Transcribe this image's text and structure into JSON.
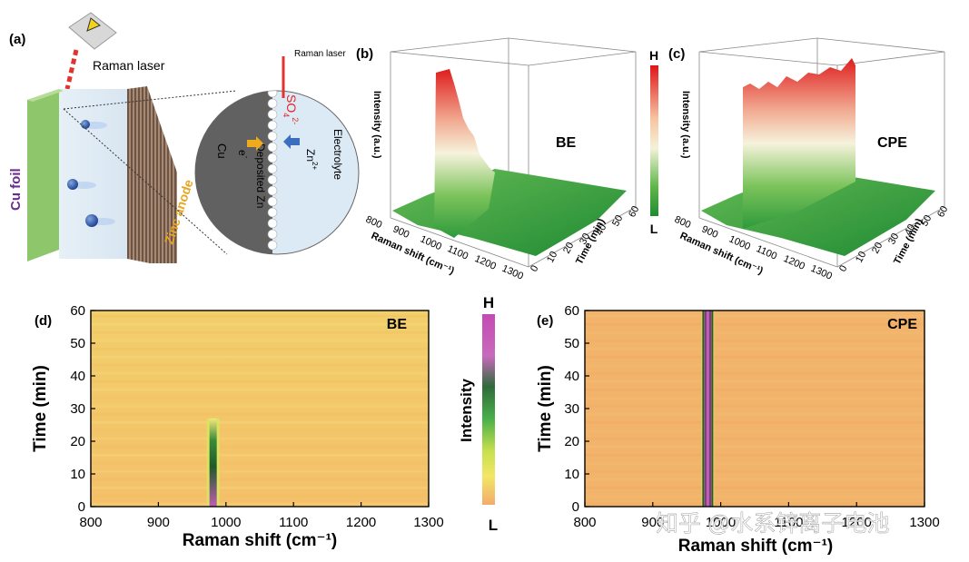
{
  "panels": {
    "a": {
      "label": "(a)",
      "laser_label": "Raman laser",
      "zoom_laser_label": "Raman laser",
      "cu_foil": "Cu foil",
      "zinc_anode": "Zinc anode",
      "cu": "Cu",
      "deposited_zn": "Deposited Zn",
      "electrolyte": "Electrolyte",
      "sulfate_base": "SO",
      "sulfate_sub": "4",
      "sulfate_sup": "2-",
      "zinc_base": "Zn",
      "zinc_sup": "2+",
      "electron": "e",
      "electron_sup": "-"
    },
    "b": {
      "label": "(b)",
      "tag": "BE"
    },
    "c": {
      "label": "(c)",
      "tag": "CPE"
    },
    "d": {
      "label": "(d)",
      "tag": "BE"
    },
    "e": {
      "label": "(e)",
      "tag": "CPE"
    },
    "colorbar3d": {
      "high": "H",
      "low": "L"
    },
    "colorbar2d": {
      "high": "H",
      "low": "L",
      "title": "Intensity"
    },
    "watermark": "知乎 @水系锌离子电池"
  },
  "chart_data": [
    {
      "panel": "b",
      "type": "surface3d",
      "title": "BE",
      "xlabel": "Raman shift (cm⁻¹)",
      "ylabel": "Time (min)",
      "zlabel": "Intensity (a.u.)",
      "x_ticks": [
        "800",
        "900",
        "1000",
        "1100",
        "1200",
        "1300"
      ],
      "y_ticks": [
        "0",
        "10",
        "20",
        "30",
        "40",
        "50",
        "60"
      ],
      "colorbar": [
        "L",
        "H"
      ],
      "peak_position": 981,
      "peak_visible_until_min": 25
    },
    {
      "panel": "c",
      "type": "surface3d",
      "title": "CPE",
      "xlabel": "Raman shift (cm⁻¹)",
      "ylabel": "Time (min)",
      "zlabel": "Intensity (a.u.)",
      "x_ticks": [
        "800",
        "900",
        "1000",
        "1100",
        "1200",
        "1300"
      ],
      "y_ticks": [
        "0",
        "10",
        "20",
        "30",
        "40",
        "50",
        "60"
      ],
      "colorbar": [
        "L",
        "H"
      ],
      "peak_position": 981,
      "peak_visible_until_min": 60
    },
    {
      "panel": "d",
      "type": "heatmap",
      "title": "BE",
      "xlabel": "Raman shift (cm⁻¹)",
      "ylabel": "Time (min)",
      "xlim": [
        800,
        1300
      ],
      "ylim": [
        0,
        60
      ],
      "x_ticks": [
        "800",
        "900",
        "1000",
        "1100",
        "1200",
        "1300"
      ],
      "y_ticks": [
        "0",
        "10",
        "20",
        "30",
        "40",
        "50",
        "60"
      ],
      "peak_position": 981,
      "peak_end_min": 27
    },
    {
      "panel": "e",
      "type": "heatmap",
      "title": "CPE",
      "xlabel": "Raman shift (cm⁻¹)",
      "ylabel": "Time (min)",
      "xlim": [
        800,
        1300
      ],
      "ylim": [
        0,
        60
      ],
      "x_ticks": [
        "800",
        "900",
        "1000",
        "1100",
        "1200",
        "1300"
      ],
      "y_ticks": [
        "0",
        "10",
        "20",
        "30",
        "40",
        "50",
        "60"
      ],
      "peak_position": 981,
      "peak_end_min": 60
    }
  ]
}
